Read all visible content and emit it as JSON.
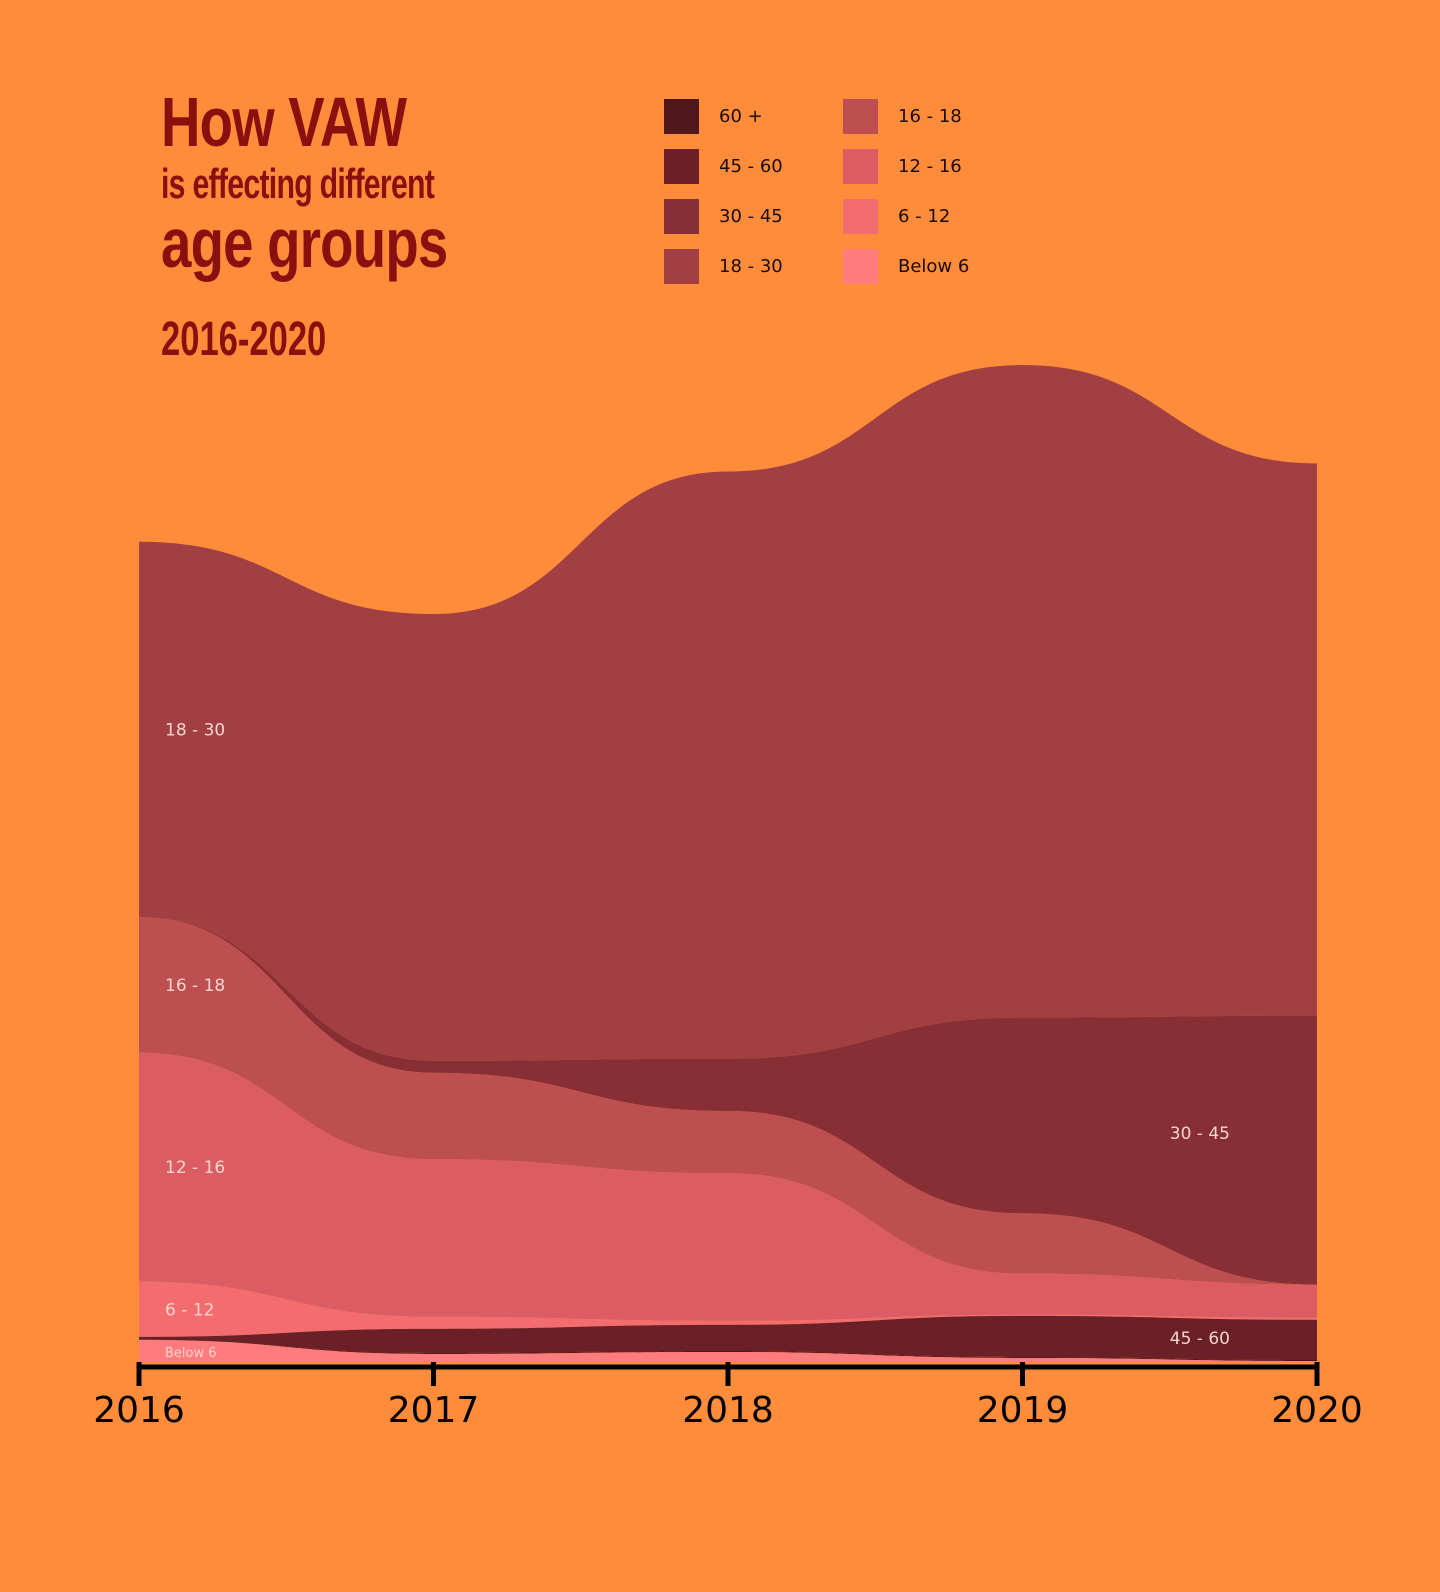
{
  "title": {
    "line1": "How VAW",
    "line2": "is effecting different",
    "line3": "age groups",
    "years": "2016-2020"
  },
  "legend": [
    {
      "label": "60 +",
      "color": "#51161A"
    },
    {
      "label": "45 - 60",
      "color": "#6A2026"
    },
    {
      "label": "30 - 45",
      "color": "#872F34"
    },
    {
      "label": "18 - 30",
      "color": "#A23F43"
    },
    {
      "label": "16 - 18",
      "color": "#BD4F51"
    },
    {
      "label": "12 - 16",
      "color": "#DB5D63"
    },
    {
      "label": "6 - 12",
      "color": "#F36D70"
    },
    {
      "label": "Below 6",
      "color": "#FE7B7E"
    }
  ],
  "chart_data": {
    "type": "area",
    "stacked": true,
    "x": [
      "2016",
      "2017",
      "2018",
      "2019",
      "2020"
    ],
    "ylim": [
      0,
      1000
    ],
    "series": [
      {
        "name": "Below 6",
        "color": "#FE7B7E",
        "values": [
          22,
          8,
          10,
          4,
          1
        ]
      },
      {
        "name": "60 +",
        "color": "#51161A",
        "values": [
          0,
          1,
          1,
          1,
          1
        ]
      },
      {
        "name": "45 - 60",
        "color": "#6A2026",
        "values": [
          3,
          24,
          26,
          41,
          40
        ]
      },
      {
        "name": "6 - 12",
        "color": "#F36D70",
        "values": [
          55,
          12,
          4,
          1,
          2
        ]
      },
      {
        "name": "12 - 16",
        "color": "#DB5D63",
        "values": [
          228,
          157,
          147,
          41,
          33
        ]
      },
      {
        "name": "16 - 18",
        "color": "#BD4F51",
        "values": [
          135,
          86,
          62,
          60,
          0
        ]
      },
      {
        "name": "30 - 45",
        "color": "#872F34",
        "values": [
          0,
          12,
          52,
          195,
          268
        ]
      },
      {
        "name": "18 - 30",
        "color": "#A23F43",
        "values": [
          374,
          445,
          585,
          650,
          550
        ]
      }
    ],
    "stream_labels": [
      {
        "text": "18 - 30",
        "series": "18 - 30",
        "x": "2016"
      },
      {
        "text": "16 - 18",
        "series": "16 - 18",
        "x": "2016"
      },
      {
        "text": "12 - 16",
        "series": "12 - 16",
        "x": "2016"
      },
      {
        "text": "6 - 12",
        "series": "6 - 12",
        "x": "2016"
      },
      {
        "text": "Below 6",
        "series": "Below 6",
        "x": "2016"
      },
      {
        "text": "30 - 45",
        "series": "30 - 45",
        "x": "2019.5"
      },
      {
        "text": "45 - 60",
        "series": "45 - 60",
        "x": "2019.5"
      }
    ]
  }
}
